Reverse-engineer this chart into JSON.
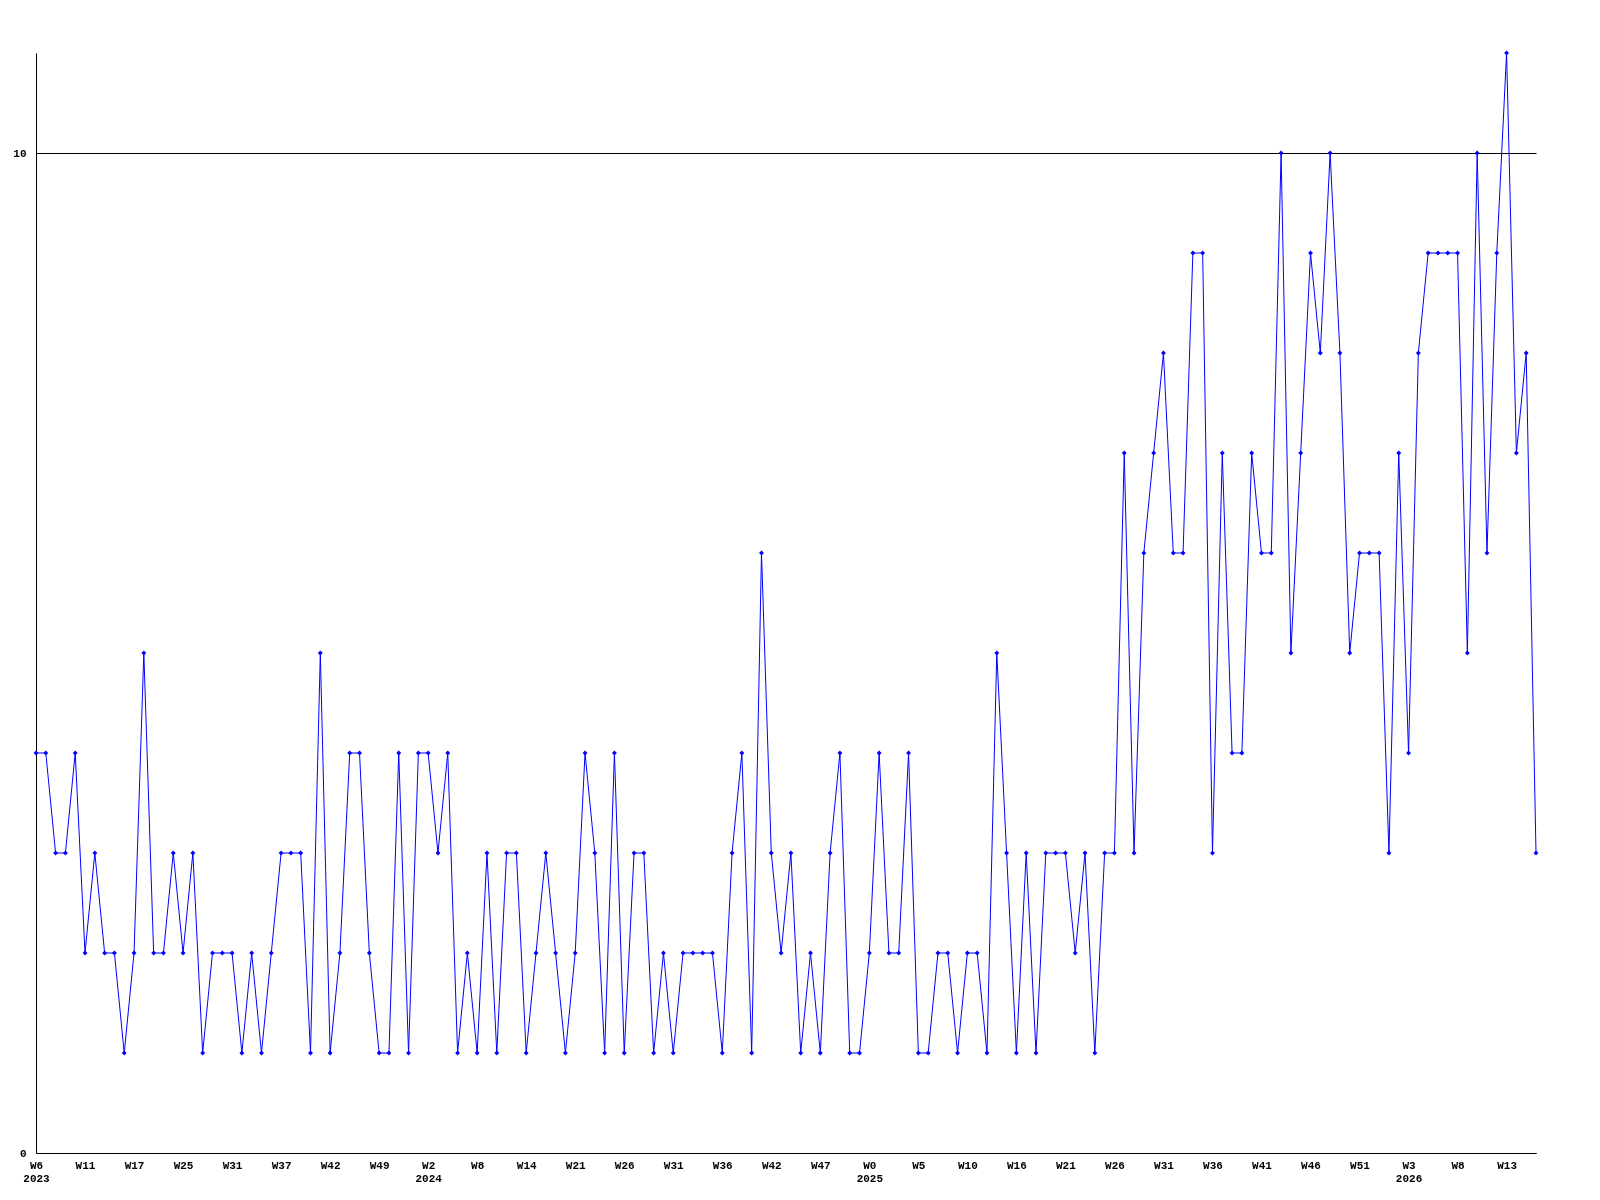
{
  "chart_data": {
    "type": "line",
    "categories": [
      "W6\n2023",
      null,
      null,
      null,
      null,
      "W11",
      null,
      null,
      null,
      null,
      "W17",
      null,
      null,
      null,
      null,
      "W25",
      null,
      null,
      null,
      null,
      "W31",
      null,
      null,
      null,
      null,
      "W37",
      null,
      null,
      null,
      null,
      "W42",
      null,
      null,
      null,
      null,
      "W49",
      null,
      null,
      null,
      null,
      "W2\n2024",
      null,
      null,
      null,
      null,
      "W8",
      null,
      null,
      null,
      null,
      "W14",
      null,
      null,
      null,
      null,
      "W21",
      null,
      null,
      null,
      null,
      "W26",
      null,
      null,
      null,
      null,
      "W31",
      null,
      null,
      null,
      null,
      "W36",
      null,
      null,
      null,
      null,
      "W42",
      null,
      null,
      null,
      null,
      "W47",
      null,
      null,
      null,
      null,
      "W0\n2025",
      null,
      null,
      null,
      null,
      "W5",
      null,
      null,
      null,
      null,
      "W10",
      null,
      null,
      null,
      null,
      "W16",
      null,
      null,
      null,
      null,
      "W21",
      null,
      null,
      null,
      null,
      "W26",
      null,
      null,
      null,
      null,
      "W31",
      null,
      null,
      null,
      null,
      "W36",
      null,
      null,
      null,
      null,
      "W41",
      null,
      null,
      null,
      null,
      "W46",
      null,
      null,
      null,
      null,
      "W51",
      null,
      null,
      null,
      null,
      "W3\n2026",
      null,
      null,
      null,
      null,
      "W8",
      null,
      null,
      null,
      null,
      "W13",
      null,
      null,
      null
    ],
    "series": [
      {
        "color": "#0000ff",
        "values": [
          4,
          4,
          3,
          3,
          4,
          2,
          3,
          2,
          2,
          1,
          2,
          5,
          2,
          2,
          3,
          2,
          3,
          1,
          2,
          2,
          2,
          1,
          2,
          1,
          2,
          3,
          3,
          3,
          1,
          5,
          1,
          2,
          4,
          4,
          2,
          1,
          1,
          4,
          1,
          4,
          4,
          3,
          4,
          1,
          2,
          1,
          3,
          1,
          3,
          3,
          1,
          2,
          3,
          2,
          1,
          2,
          4,
          3,
          1,
          4,
          1,
          3,
          3,
          1,
          2,
          1,
          2,
          2,
          2,
          2,
          1,
          3,
          4,
          1,
          6,
          3,
          2,
          3,
          1,
          2,
          1,
          3,
          4,
          1,
          1,
          2,
          4,
          2,
          2,
          4,
          1,
          1,
          2,
          2,
          1,
          2,
          2,
          1,
          5,
          3,
          1,
          3,
          1,
          3,
          3,
          3,
          2,
          3,
          1,
          3,
          3,
          7,
          3,
          6,
          7,
          8,
          6,
          6,
          9,
          9,
          3,
          7,
          4,
          4,
          7,
          6,
          6,
          10,
          5,
          7,
          9,
          8,
          10,
          8,
          5,
          6,
          6,
          6,
          3,
          7,
          4,
          8,
          9,
          9,
          9,
          9,
          5,
          10,
          6,
          9,
          11,
          7,
          8,
          3
        ]
      }
    ],
    "ylim": [
      0,
      11
    ],
    "yticks": [
      0,
      10
    ],
    "grid": "y",
    "marker": "diamond",
    "line_style": "solid"
  }
}
